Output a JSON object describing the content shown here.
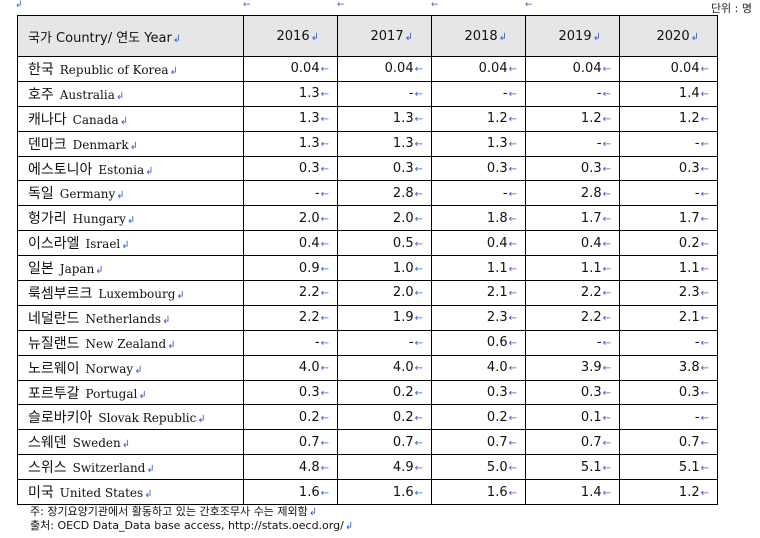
{
  "unit_label": "단위 : 명",
  "marks": {
    "para": "↲",
    "arrow": "←"
  },
  "header": {
    "country_label": "국가 Country/ 연도 Year",
    "years": [
      "2016",
      "2017",
      "2018",
      "2019",
      "2020"
    ]
  },
  "rows": [
    {
      "ko": "한국",
      "en": "Republic of Korea",
      "values": [
        "0.04",
        "0.04",
        "0.04",
        "0.04",
        "0.04"
      ]
    },
    {
      "ko": "호주",
      "en": "Australia",
      "values": [
        "1.3",
        "-",
        "-",
        "-",
        "1.4"
      ]
    },
    {
      "ko": "캐나다",
      "en": "Canada",
      "values": [
        "1.3",
        "1.3",
        "1.2",
        "1.2",
        "1.2"
      ]
    },
    {
      "ko": "덴마크",
      "en": "Denmark",
      "values": [
        "1.3",
        "1.3",
        "1.3",
        "-",
        "-"
      ]
    },
    {
      "ko": "에스토니아",
      "en": "Estonia",
      "values": [
        "0.3",
        "0.3",
        "0.3",
        "0.3",
        "0.3"
      ]
    },
    {
      "ko": "독일",
      "en": "Germany",
      "values": [
        "-",
        "2.8",
        "-",
        "2.8",
        "-"
      ]
    },
    {
      "ko": "헝가리",
      "en": "Hungary",
      "values": [
        "2.0",
        "2.0",
        "1.8",
        "1.7",
        "1.7"
      ]
    },
    {
      "ko": "이스라엘",
      "en": "Israel",
      "values": [
        "0.4",
        "0.5",
        "0.4",
        "0.4",
        "0.2"
      ]
    },
    {
      "ko": "일본",
      "en": "Japan",
      "values": [
        "0.9",
        "1.0",
        "1.1",
        "1.1",
        "1.1"
      ]
    },
    {
      "ko": "룩셈부르크",
      "en": "Luxembourg",
      "values": [
        "2.2",
        "2.0",
        "2.1",
        "2.2",
        "2.3"
      ]
    },
    {
      "ko": "네덜란드",
      "en": "Netherlands",
      "values": [
        "2.2",
        "1.9",
        "2.3",
        "2.2",
        "2.1"
      ]
    },
    {
      "ko": "뉴질랜드",
      "en": "New Zealand",
      "values": [
        "-",
        "-",
        "0.6",
        "-",
        "-"
      ]
    },
    {
      "ko": "노르웨이",
      "en": "Norway",
      "values": [
        "4.0",
        "4.0",
        "4.0",
        "3.9",
        "3.8"
      ]
    },
    {
      "ko": "포르투갈",
      "en": "Portugal",
      "values": [
        "0.3",
        "0.2",
        "0.3",
        "0.3",
        "0.3"
      ]
    },
    {
      "ko": "슬로바키아",
      "en": "Slovak Republic",
      "values": [
        "0.2",
        "0.2",
        "0.2",
        "0.1",
        "-"
      ]
    },
    {
      "ko": "스웨덴",
      "en": "Sweden",
      "values": [
        "0.7",
        "0.7",
        "0.7",
        "0.7",
        "0.7"
      ]
    },
    {
      "ko": "스위스",
      "en": "Switzerland",
      "values": [
        "4.8",
        "4.9",
        "5.0",
        "5.1",
        "5.1"
      ]
    },
    {
      "ko": "미국",
      "en": "United States",
      "values": [
        "1.6",
        "1.6",
        "1.6",
        "1.4",
        "1.2"
      ]
    }
  ],
  "notes": {
    "note": "주: 장기요양기관에서 활동하고 있는 간호조무사 수는 제외함",
    "source": "출처: OECD Data_Data base access, http://stats.oecd.org/"
  }
}
